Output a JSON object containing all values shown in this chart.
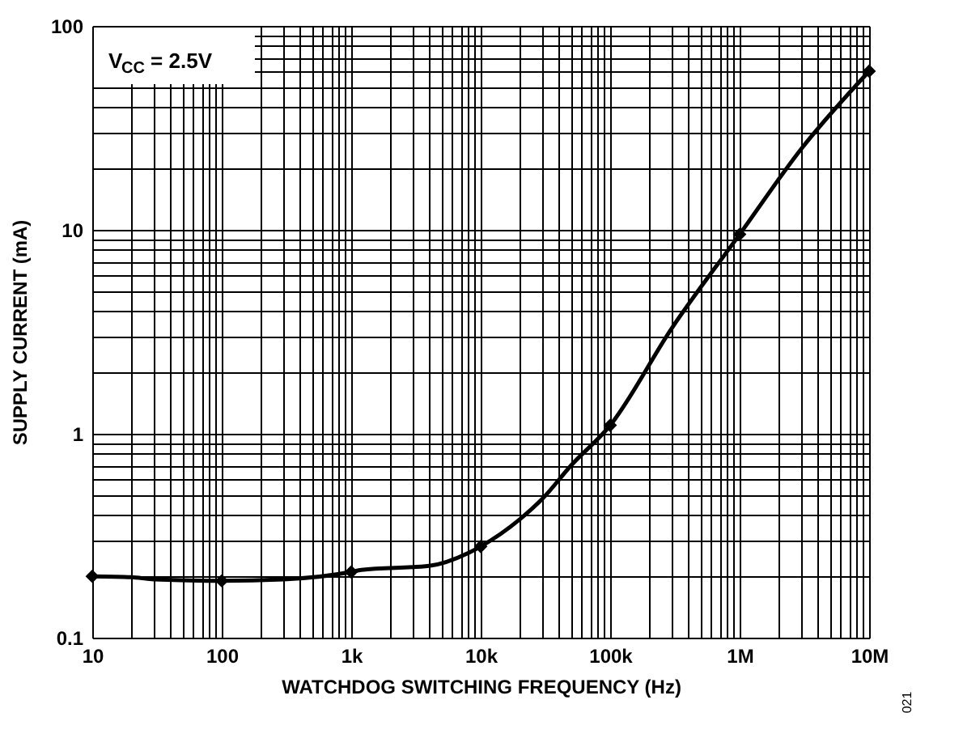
{
  "chart_data": {
    "type": "line",
    "xlabel": "WATCHDOG SWITCHING FREQUENCY (Hz)",
    "ylabel": "SUPPLY CURRENT (mA)",
    "annotations": [
      "V$_{CC}$ = 2.5V",
      "021"
    ],
    "series": [
      {
        "color": "#000000",
        "marker": "none",
        "x": [
          10,
          20,
          30,
          100,
          300,
          1000,
          1200,
          4000,
          8000,
          10000,
          20000,
          30000,
          50000,
          100000,
          300000,
          1000000,
          3000000,
          10000000
        ],
        "values": [
          0.2,
          0.198,
          0.193,
          0.19,
          0.193,
          0.21,
          0.215,
          0.225,
          0.26,
          0.28,
          0.38,
          0.48,
          0.7,
          1.1,
          3.3,
          9.5,
          25,
          60
        ]
      },
      {
        "type": "scatter",
        "color": "#000000",
        "marker": "diamond",
        "x": [
          10,
          100,
          1000,
          10000,
          100000,
          1000000,
          10000000
        ],
        "values": [
          0.2,
          0.19,
          0.21,
          0.28,
          1.1,
          9.5,
          60
        ]
      }
    ],
    "log": "xy",
    "grid": true,
    "line_style": "solid",
    "xlim": [
      10,
      10000000
    ],
    "ylim": [
      0.1,
      100
    ],
    "xticks": [
      10,
      {
        "value": 20,
        "label": null
      },
      {
        "value": 30,
        "label": null
      },
      {
        "value": 40,
        "label": null
      },
      {
        "value": 50,
        "label": null
      },
      {
        "value": 60,
        "label": null
      },
      {
        "value": 70,
        "label": null
      },
      {
        "value": 80,
        "label": null
      },
      {
        "value": 90,
        "label": null
      },
      100,
      {
        "value": 200,
        "label": null
      },
      {
        "value": 300,
        "label": null
      },
      {
        "value": 400,
        "label": null
      },
      {
        "value": 500,
        "label": null
      },
      {
        "value": 600,
        "label": null
      },
      {
        "value": 700,
        "label": null
      },
      {
        "value": 800,
        "label": null
      },
      {
        "value": 900,
        "label": null
      },
      {
        "value": 1000,
        "label": "1k"
      },
      {
        "value": 2000,
        "label": null
      },
      {
        "value": 3000,
        "label": null
      },
      {
        "value": 4000,
        "label": null
      },
      {
        "value": 5000,
        "label": null
      },
      {
        "value": 6000,
        "label": null
      },
      {
        "value": 7000,
        "label": null
      },
      {
        "value": 8000,
        "label": null
      },
      {
        "value": 9000,
        "label": null
      },
      {
        "value": 10000,
        "label": "10k"
      },
      {
        "value": 20000,
        "label": null
      },
      {
        "value": 30000,
        "label": null
      },
      {
        "value": 40000,
        "label": null
      },
      {
        "value": 50000,
        "label": null
      },
      {
        "value": 60000,
        "label": null
      },
      {
        "value": 70000,
        "label": null
      },
      {
        "value": 80000,
        "label": null
      },
      {
        "value": 90000,
        "label": null
      },
      {
        "value": 100000,
        "label": "100k"
      },
      {
        "value": 200000,
        "label": null
      },
      {
        "value": 300000,
        "label": null
      },
      {
        "value": 400000,
        "label": null
      },
      {
        "value": 500000,
        "label": null
      },
      {
        "value": 600000,
        "label": null
      },
      {
        "value": 700000,
        "label": null
      },
      {
        "value": 800000,
        "label": null
      },
      {
        "value": 900000,
        "label": null
      },
      {
        "value": 1000000,
        "label": "1M"
      },
      {
        "value": 2000000,
        "label": null
      },
      {
        "value": 3000000,
        "label": null
      },
      {
        "value": 4000000,
        "label": null
      },
      {
        "value": 5000000,
        "label": null
      },
      {
        "value": 6000000,
        "label": null
      },
      {
        "value": 7000000,
        "label": null
      },
      {
        "value": 8000000,
        "label": null
      },
      {
        "value": 9000000,
        "label": null
      },
      {
        "value": 10000000,
        "label": "10M"
      }
    ],
    "yticks": [
      0.1,
      {
        "value": 0.2,
        "label": null
      },
      {
        "value": 0.3,
        "label": null
      },
      {
        "value": 0.4,
        "label": null
      },
      {
        "value": 0.5,
        "label": null
      },
      {
        "value": 0.6,
        "label": null
      },
      {
        "value": 0.7,
        "label": null
      },
      {
        "value": 0.8,
        "label": null
      },
      {
        "value": 0.9,
        "label": null
      },
      1,
      {
        "value": 2,
        "label": null
      },
      {
        "value": 3,
        "label": null
      },
      {
        "value": 4,
        "label": null
      },
      {
        "value": 5,
        "label": null
      },
      {
        "value": 6,
        "label": null
      },
      {
        "value": 7,
        "label": null
      },
      {
        "value": 8,
        "label": null
      },
      {
        "value": 9,
        "label": null
      },
      10,
      {
        "value": 20,
        "label": null
      },
      {
        "value": 30,
        "label": null
      },
      {
        "value": 40,
        "label": null
      },
      {
        "value": 50,
        "label": null
      },
      {
        "value": 60,
        "label": null
      },
      {
        "value": 70,
        "label": null
      },
      {
        "value": 80,
        "label": null
      },
      {
        "value": 90,
        "label": null
      },
      100
    ]
  }
}
